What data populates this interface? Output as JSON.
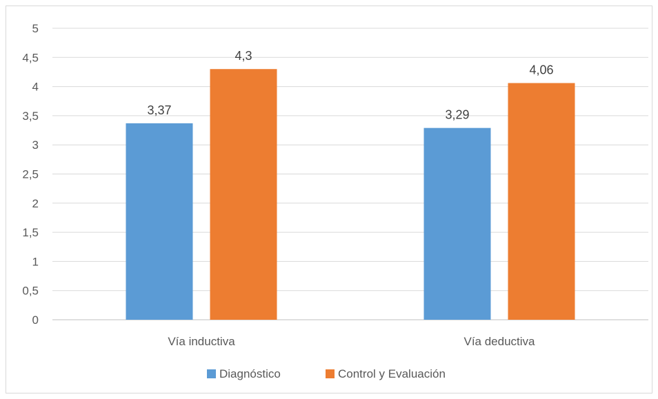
{
  "chart_data": {
    "type": "bar",
    "categories": [
      "Vía inductiva",
      "Vía deductiva"
    ],
    "series": [
      {
        "name": "Diagnóstico",
        "values": [
          3.37,
          3.29
        ],
        "color": "#5b9bd5"
      },
      {
        "name": "Control y Evaluación",
        "values": [
          4.3,
          4.06
        ],
        "color": "#ed7d31"
      }
    ],
    "data_labels": [
      [
        "3,37",
        "3,29"
      ],
      [
        "4,3",
        "4,06"
      ]
    ],
    "title": "",
    "xlabel": "",
    "ylabel": "",
    "ylim": [
      0,
      5
    ],
    "yticks": [
      0,
      0.5,
      1,
      1.5,
      2,
      2.5,
      3,
      3.5,
      4,
      4.5,
      5
    ],
    "ytick_labels": [
      "0",
      "0,5",
      "1",
      "1,5",
      "2",
      "2,5",
      "3",
      "3,5",
      "4",
      "4,5",
      "5"
    ],
    "grid": true,
    "legend_position": "bottom"
  }
}
